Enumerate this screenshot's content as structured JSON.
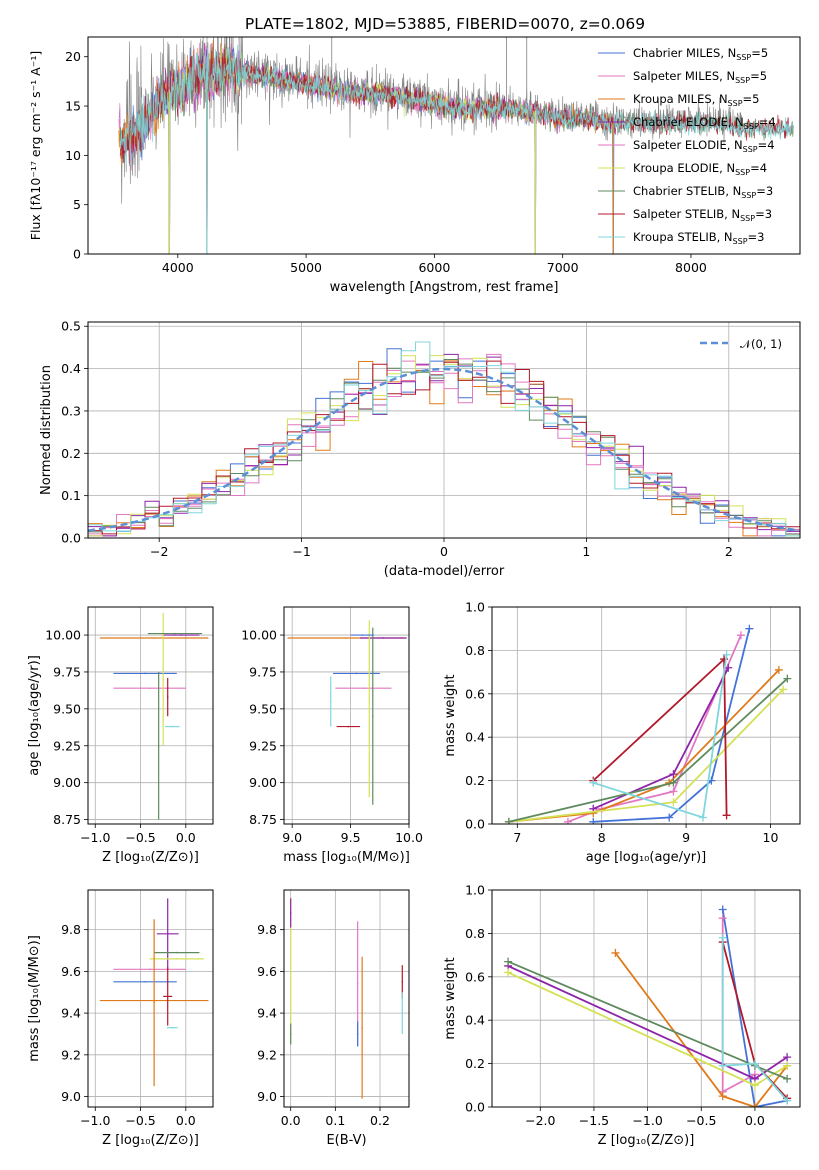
{
  "colors": {
    "ChabrierMILES": "#4472d6",
    "SalpeterMILES": "#e377c2",
    "KroupaMILES": "#e07a1a",
    "ChabrierELODIE": "#8e24aa",
    "SalpeterELODIE": "#e377c2",
    "KroupaELODIE": "#d4e157",
    "ChabrierSTELIB": "#5f8a5f",
    "SalpeterSTELIB": "#b2182b",
    "KroupaSTELIB": "#7fd6dc",
    "data": "#808080"
  },
  "chart_data": [
    {
      "id": "spectrum",
      "type": "line",
      "title": "PLATE=1802, MJD=53885, FIBERID=0070, z=0.069",
      "xlabel": "wavelength [Angstrom, rest frame]",
      "ylabel": "Flux [fλ10⁻¹⁷ erg cm⁻² s⁻¹ A⁻¹]",
      "xlim": [
        3300,
        8850
      ],
      "ylim": [
        0,
        22
      ],
      "xticks": [
        4000,
        5000,
        6000,
        7000,
        8000
      ],
      "yticks": [
        0,
        5,
        10,
        15,
        20
      ],
      "grid": false,
      "legend_position": "top-right",
      "legend": [
        {
          "base": "Chabrier MILES, N",
          "sub": "SSP",
          "tail": "=5",
          "key": "ChabrierMILES"
        },
        {
          "base": "Salpeter MILES, N",
          "sub": "SSP",
          "tail": "=5",
          "key": "SalpeterMILES"
        },
        {
          "base": "Kroupa MILES, N",
          "sub": "SSP",
          "tail": "=5",
          "key": "KroupaMILES"
        },
        {
          "base": "Chabrier ELODIE, N",
          "sub": "SSP",
          "tail": "=4",
          "key": "ChabrierELODIE"
        },
        {
          "base": "Salpeter ELODIE, N",
          "sub": "SSP",
          "tail": "=4",
          "key": "SalpeterELODIE"
        },
        {
          "base": "Kroupa ELODIE, N",
          "sub": "SSP",
          "tail": "=4",
          "key": "KroupaELODIE"
        },
        {
          "base": "Chabrier STELIB, N",
          "sub": "SSP",
          "tail": "=3",
          "key": "ChabrierSTELIB"
        },
        {
          "base": "Salpeter STELIB, N",
          "sub": "SSP",
          "tail": "=3",
          "key": "SalpeterSTELIB"
        },
        {
          "base": "Kroupa STELIB, N",
          "sub": "SSP",
          "tail": "=3",
          "key": "KroupaSTELIB"
        }
      ],
      "continuum": [
        [
          3550,
          11.5
        ],
        [
          3700,
          13
        ],
        [
          3800,
          14.5
        ],
        [
          3900,
          16.5
        ],
        [
          4000,
          17
        ],
        [
          4100,
          18
        ],
        [
          4200,
          18.5
        ],
        [
          4300,
          18.5
        ],
        [
          4400,
          19
        ],
        [
          4600,
          18.5
        ],
        [
          4800,
          18
        ],
        [
          5000,
          17.5
        ],
        [
          5200,
          17
        ],
        [
          5400,
          16.5
        ],
        [
          5600,
          16.5
        ],
        [
          5800,
          16
        ],
        [
          6000,
          15.5
        ],
        [
          6200,
          15
        ],
        [
          6400,
          15
        ],
        [
          6600,
          15
        ],
        [
          6800,
          14.5
        ],
        [
          7000,
          14
        ],
        [
          7200,
          14
        ],
        [
          7400,
          13.5
        ],
        [
          7600,
          13.5
        ],
        [
          7800,
          13.5
        ],
        [
          8000,
          13.5
        ],
        [
          8200,
          13.5
        ],
        [
          8400,
          13
        ]
      ],
      "absorption_dips": [
        [
          3934,
          0
        ],
        [
          4227,
          0
        ],
        [
          6787,
          0
        ],
        [
          7394,
          0
        ]
      ]
    },
    {
      "id": "residuals",
      "type": "line",
      "xlabel": "(data-model)/error",
      "ylabel": "Normed distribution",
      "xlim": [
        -2.5,
        2.5
      ],
      "ylim": [
        0,
        0.51
      ],
      "xticks": [
        -2,
        -1,
        0,
        1,
        2
      ],
      "yticks": [
        0.0,
        0.1,
        0.2,
        0.3,
        0.4,
        0.5
      ],
      "grid": true,
      "legend_position": "top-right",
      "legend": [
        {
          "label": "𝒩(0, 1)",
          "color": "#5b8fd6"
        }
      ],
      "bin_width": 0.1
    },
    {
      "id": "age_vs_Z",
      "type": "scatter",
      "xlabel": "Z [log₁₀(Z/Z⊙)]",
      "ylabel": "age  [log₁₀(age/yr)]",
      "xlim": [
        -1.08,
        0.3
      ],
      "ylim": [
        8.72,
        10.19
      ],
      "xticks": [
        -1.0,
        -0.5,
        0.0
      ],
      "yticks": [
        8.75,
        9.0,
        9.25,
        9.5,
        9.75,
        10.0
      ],
      "grid": true,
      "points": [
        {
          "x": -0.45,
          "y": 9.74,
          "xerr": 0.35,
          "yerr": 0.0,
          "key": "ChabrierMILES"
        },
        {
          "x": -0.4,
          "y": 9.64,
          "xerr": 0.4,
          "yerr": 0.0,
          "key": "SalpeterMILES"
        },
        {
          "x": -0.35,
          "y": 9.98,
          "xerr": 0.6,
          "yerr": 0.0,
          "key": "KroupaMILES"
        },
        {
          "x": -0.05,
          "y": 10.0,
          "xerr": 0.2,
          "yerr": 0.0,
          "key": "ChabrierELODIE"
        },
        {
          "x": -0.25,
          "y": 9.7,
          "xerr": 0.0,
          "yerr": 0.45,
          "key": "KroupaELODIE"
        },
        {
          "x": -0.3,
          "y": 9.25,
          "xerr": 0.0,
          "yerr": 0.5,
          "key": "ChabrierSTELIB"
        },
        {
          "x": -0.2,
          "y": 9.58,
          "xerr": 0.0,
          "yerr": 0.13,
          "key": "SalpeterSTELIB"
        },
        {
          "x": -0.15,
          "y": 9.38,
          "xerr": 0.08,
          "yerr": 0.0,
          "key": "KroupaSTELIB"
        },
        {
          "x": -0.12,
          "y": 10.01,
          "xerr": 0.3,
          "yerr": 0.0,
          "key": "ChabrierSTELIB"
        }
      ]
    },
    {
      "id": "age_vs_mass",
      "type": "scatter",
      "xlabel": "mass [log₁₀(M/M⊙)]",
      "ylabel": "",
      "xlim": [
        8.93,
        10.0
      ],
      "ylim": [
        8.72,
        10.19
      ],
      "xticks": [
        9.0,
        9.5,
        10.0
      ],
      "yticks": [
        8.75,
        9.0,
        9.25,
        9.5,
        9.75,
        10.0
      ],
      "grid": true,
      "points": [
        {
          "x": 9.55,
          "y": 9.74,
          "xerr": 0.2,
          "yerr": 0.0,
          "key": "ChabrierMILES"
        },
        {
          "x": 9.61,
          "y": 9.64,
          "xerr": 0.24,
          "yerr": 0.0,
          "key": "SalpeterMILES"
        },
        {
          "x": 9.46,
          "y": 9.98,
          "xerr": 0.5,
          "yerr": 0.0,
          "key": "KroupaMILES"
        },
        {
          "x": 9.78,
          "y": 9.98,
          "xerr": 0.2,
          "yerr": 0.0,
          "key": "ChabrierELODIE"
        },
        {
          "x": 9.66,
          "y": 9.5,
          "xerr": 0.0,
          "yerr": 0.6,
          "key": "KroupaELODIE"
        },
        {
          "x": 9.69,
          "y": 9.45,
          "xerr": 0.0,
          "yerr": 0.6,
          "key": "ChabrierSTELIB"
        },
        {
          "x": 9.48,
          "y": 9.38,
          "xerr": 0.1,
          "yerr": 0.0,
          "key": "SalpeterSTELIB"
        },
        {
          "x": 9.33,
          "y": 9.55,
          "xerr": 0.0,
          "yerr": 0.17,
          "key": "KroupaSTELIB"
        },
        {
          "x": 9.6,
          "y": 10.0,
          "xerr": 0.1,
          "yerr": 0.0,
          "key": "ChabrierMILES"
        }
      ]
    },
    {
      "id": "massweight_vs_age",
      "type": "line",
      "xlabel": "age  [log₁₀(age/yr)]",
      "ylabel": "mass weight",
      "xlim": [
        6.7,
        10.35
      ],
      "ylim": [
        0,
        1.0
      ],
      "xticks": [
        7,
        8,
        9,
        10
      ],
      "yticks": [
        0.0,
        0.2,
        0.4,
        0.6,
        0.8,
        1.0
      ],
      "grid": true,
      "series": [
        {
          "key": "ChabrierMILES",
          "x": [
            7.9,
            8.8,
            9.3,
            9.75
          ],
          "y": [
            0.01,
            0.03,
            0.2,
            0.9
          ]
        },
        {
          "key": "SalpeterMILES",
          "x": [
            7.6,
            8.0,
            8.85,
            9.65
          ],
          "y": [
            0.01,
            0.07,
            0.15,
            0.87
          ]
        },
        {
          "key": "KroupaMILES",
          "x": [
            6.9,
            7.9,
            8.8,
            10.1
          ],
          "y": [
            0.01,
            0.05,
            0.19,
            0.71
          ]
        },
        {
          "key": "ChabrierELODIE",
          "x": [
            7.9,
            8.85,
            9.5
          ],
          "y": [
            0.07,
            0.23,
            0.72
          ]
        },
        {
          "key": "KroupaELODIE",
          "x": [
            6.9,
            8.85,
            10.15
          ],
          "y": [
            0.01,
            0.1,
            0.62
          ]
        },
        {
          "key": "ChabrierSTELIB",
          "x": [
            6.9,
            8.85,
            10.2
          ],
          "y": [
            0.01,
            0.19,
            0.67
          ]
        },
        {
          "key": "SalpeterSTELIB",
          "x": [
            7.9,
            9.45,
            9.48
          ],
          "y": [
            0.2,
            0.76,
            0.04
          ]
        },
        {
          "key": "KroupaSTELIB",
          "x": [
            7.9,
            9.2,
            9.48
          ],
          "y": [
            0.19,
            0.03,
            0.78
          ]
        }
      ]
    },
    {
      "id": "mass_vs_Z",
      "type": "scatter",
      "xlabel": "Z [log₁₀(Z/Z⊙)]",
      "ylabel": "mass [log₁₀(M/M⊙)]",
      "xlim": [
        -1.08,
        0.3
      ],
      "ylim": [
        8.95,
        9.99
      ],
      "xticks": [
        -1.0,
        -0.5,
        0.0
      ],
      "yticks": [
        9.0,
        9.2,
        9.4,
        9.6,
        9.8
      ],
      "grid": true,
      "points": [
        {
          "x": -0.45,
          "y": 9.55,
          "xerr": 0.35,
          "yerr": 0.0,
          "key": "ChabrierMILES"
        },
        {
          "x": -0.4,
          "y": 9.61,
          "xerr": 0.4,
          "yerr": 0.0,
          "key": "SalpeterMILES"
        },
        {
          "x": -0.35,
          "y": 9.46,
          "xerr": 0.6,
          "yerr": 0.0,
          "key": "KroupaMILES"
        },
        {
          "x": -0.2,
          "y": 9.78,
          "xerr": 0.12,
          "yerr": 0.17,
          "key": "ChabrierELODIE"
        },
        {
          "x": -0.1,
          "y": 9.66,
          "xerr": 0.3,
          "yerr": 0.0,
          "key": "KroupaELODIE"
        },
        {
          "x": -0.1,
          "y": 9.69,
          "xerr": 0.25,
          "yerr": 0.0,
          "key": "ChabrierSTELIB"
        },
        {
          "x": -0.2,
          "y": 9.48,
          "xerr": 0.05,
          "yerr": 0.14,
          "key": "SalpeterSTELIB"
        },
        {
          "x": -0.15,
          "y": 9.33,
          "xerr": 0.06,
          "yerr": 0.0,
          "key": "KroupaSTELIB"
        },
        {
          "x": -0.35,
          "y": 9.45,
          "xerr": 0.0,
          "yerr": 0.4,
          "key": "KroupaMILES"
        }
      ]
    },
    {
      "id": "mass_vs_EBV",
      "type": "scatter",
      "xlabel": "E(B-V)",
      "ylabel": "",
      "xlim": [
        -0.015,
        0.265
      ],
      "ylim": [
        8.95,
        9.99
      ],
      "xticks": [
        0.0,
        0.1,
        0.2
      ],
      "yticks": [
        9.0,
        9.2,
        9.4,
        9.6,
        9.8
      ],
      "grid": true,
      "points": [
        {
          "x": 0.15,
          "y": 9.54,
          "xerr": 0.0,
          "yerr": 0.3,
          "key": "SalpeterMILES"
        },
        {
          "x": 0.16,
          "y": 9.33,
          "xerr": 0.0,
          "yerr": 0.34,
          "key": "KroupaMILES"
        },
        {
          "x": 0.0,
          "y": 9.6,
          "xerr": 0.0,
          "yerr": 0.35,
          "key": "KroupaELODIE"
        },
        {
          "x": 0.0,
          "y": 9.3,
          "xerr": 0.0,
          "yerr": 0.05,
          "key": "ChabrierSTELIB"
        },
        {
          "x": 0.25,
          "y": 9.55,
          "xerr": 0.0,
          "yerr": 0.08,
          "key": "SalpeterSTELIB"
        },
        {
          "x": 0.25,
          "y": 9.4,
          "xerr": 0.0,
          "yerr": 0.1,
          "key": "KroupaSTELIB"
        },
        {
          "x": 0.15,
          "y": 9.3,
          "xerr": 0.0,
          "yerr": 0.06,
          "key": "ChabrierMILES"
        },
        {
          "x": 0.0,
          "y": 9.88,
          "xerr": 0.0,
          "yerr": 0.07,
          "key": "ChabrierELODIE"
        }
      ]
    },
    {
      "id": "massweight_vs_Z",
      "type": "line",
      "xlabel": "Z [log₁₀(Z/Z⊙)]",
      "ylabel": "mass weight",
      "xlim": [
        -2.45,
        0.42
      ],
      "ylim": [
        0,
        1.0
      ],
      "xticks": [
        -2.0,
        -1.5,
        -1.0,
        -0.5,
        0.0
      ],
      "yticks": [
        0.0,
        0.2,
        0.4,
        0.6,
        0.8,
        1.0
      ],
      "grid": true,
      "series": [
        {
          "key": "ChabrierMILES",
          "x": [
            -0.3,
            0.0,
            0.3
          ],
          "y": [
            0.91,
            0.0,
            0.03
          ]
        },
        {
          "key": "SalpeterMILES",
          "x": [
            -0.3,
            -0.3,
            0.0
          ],
          "y": [
            0.87,
            0.07,
            0.15
          ]
        },
        {
          "key": "KroupaMILES",
          "x": [
            -1.3,
            -0.3,
            0.0,
            0.3
          ],
          "y": [
            0.71,
            0.05,
            0.0,
            0.19
          ]
        },
        {
          "key": "ChabrierELODIE",
          "x": [
            -2.3,
            0.0,
            0.3
          ],
          "y": [
            0.65,
            0.13,
            0.23
          ]
        },
        {
          "key": "KroupaELODIE",
          "x": [
            -2.3,
            0.0,
            0.3
          ],
          "y": [
            0.62,
            0.1,
            0.19
          ]
        },
        {
          "key": "ChabrierSTELIB",
          "x": [
            -2.3,
            0.0,
            0.3
          ],
          "y": [
            0.67,
            0.19,
            0.13
          ]
        },
        {
          "key": "SalpeterSTELIB",
          "x": [
            -0.3,
            0.0,
            0.3
          ],
          "y": [
            0.76,
            0.2,
            0.04
          ]
        },
        {
          "key": "KroupaSTELIB",
          "x": [
            -0.3,
            -0.3,
            0.0,
            0.3
          ],
          "y": [
            0.78,
            0.19,
            0.2,
            0.03
          ]
        }
      ]
    }
  ]
}
